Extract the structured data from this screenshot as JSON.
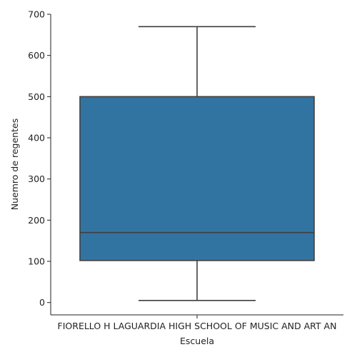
{
  "chart_data": {
    "type": "box",
    "xlabel": "Escuela",
    "ylabel": "Nuemro de regentes",
    "categories": [
      "FIORELLO H LAGUARDIA HIGH SCHOOL OF MUSIC AND ART AN"
    ],
    "boxes": [
      {
        "category": "FIORELLO H LAGUARDIA HIGH SCHOOL OF MUSIC AND ART AN",
        "whisker_low": 5,
        "q1": 102,
        "median": 170,
        "q3": 500,
        "whisker_high": 670
      }
    ],
    "ylim": [
      -30,
      700
    ],
    "yticks": [
      0,
      100,
      200,
      300,
      400,
      500,
      600,
      700
    ],
    "grid": false,
    "colors": {
      "box_fill": "#3274a1",
      "lines": "#3f3f3f",
      "axis": "#222222"
    }
  }
}
